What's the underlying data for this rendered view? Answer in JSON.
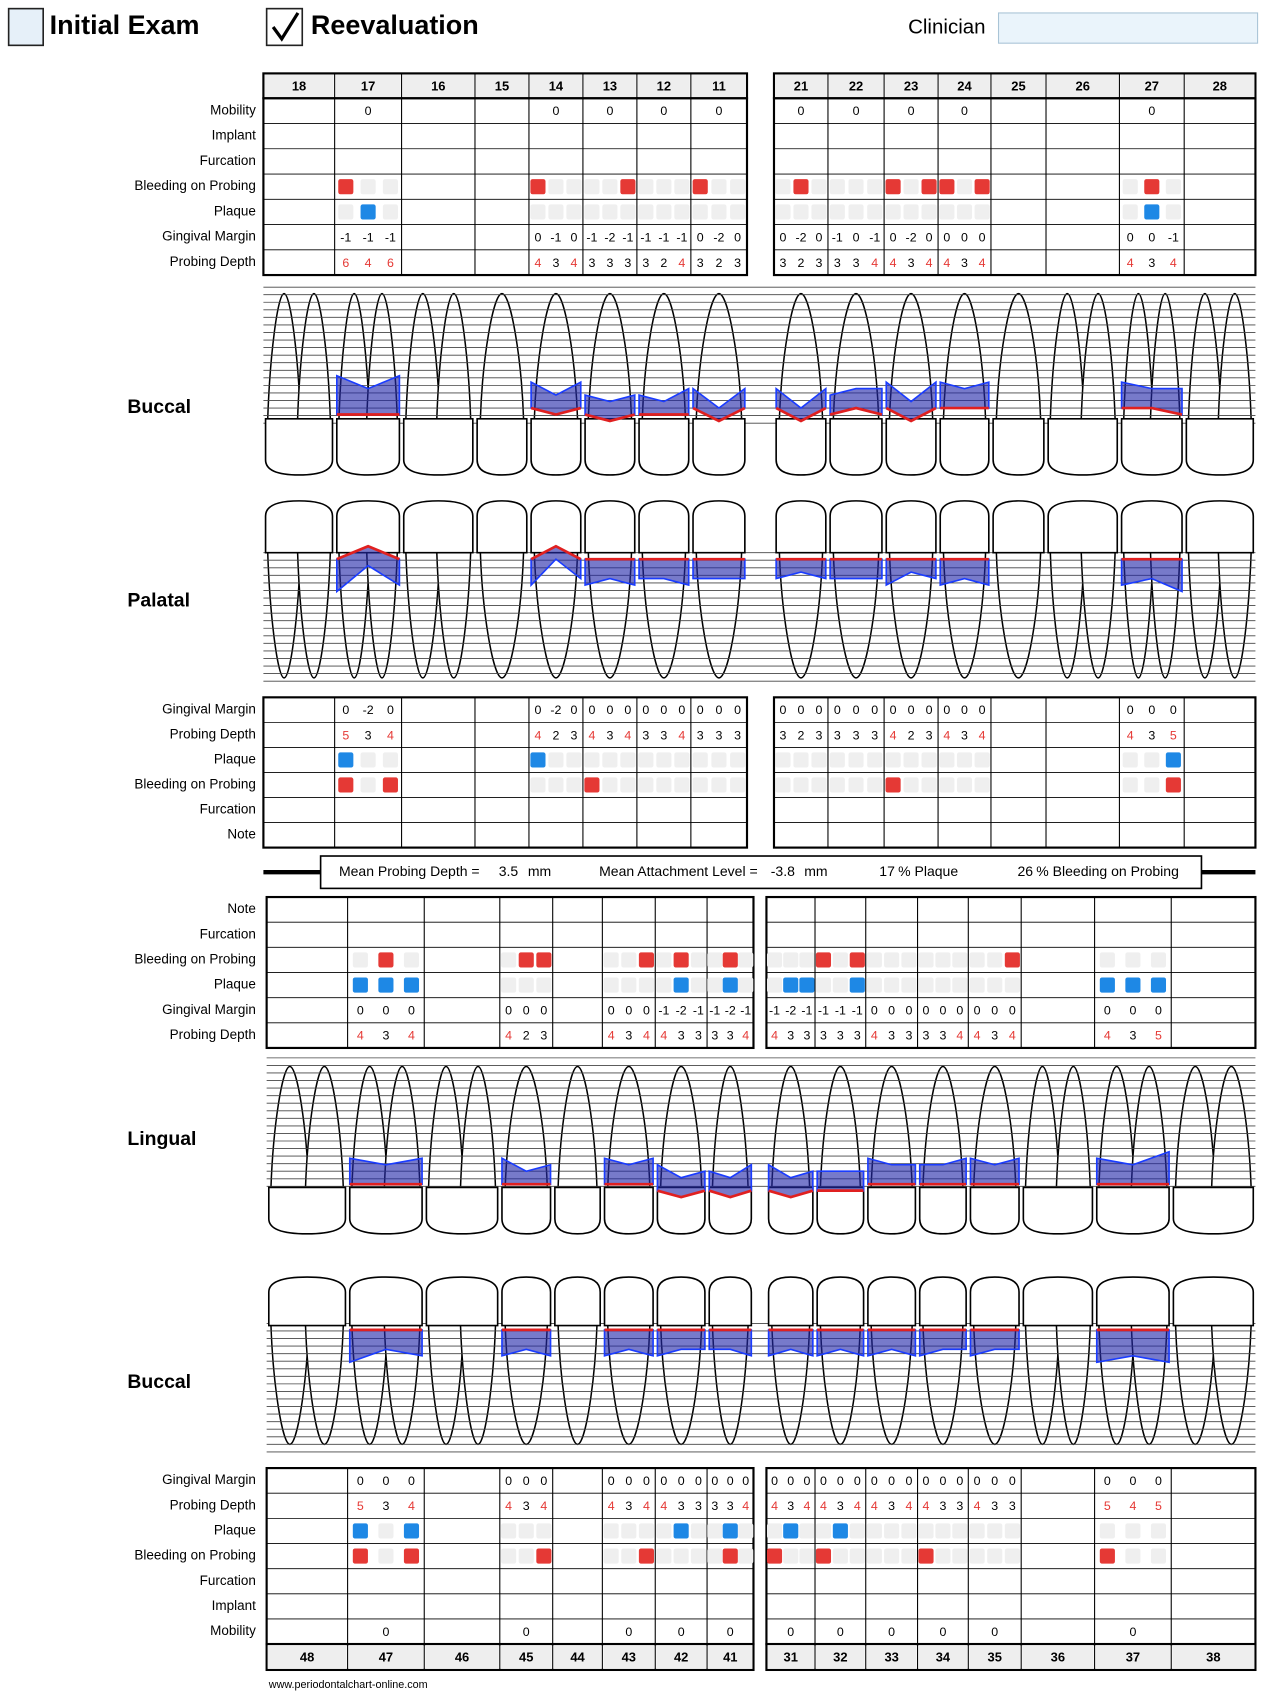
{
  "header": {
    "initial_exam": "Initial Exam",
    "reevaluation": "Reevaluation",
    "clinician": "Clinician"
  },
  "upper": {
    "teeth": [
      18,
      17,
      16,
      15,
      14,
      13,
      12,
      11,
      21,
      22,
      23,
      24,
      25,
      26,
      27,
      28
    ],
    "views": [
      "Buccal",
      "Palatal"
    ],
    "buccal_table": {
      "mobility": {
        "label": "Mobility",
        "values": [
          null,
          0,
          null,
          null,
          0,
          0,
          0,
          0,
          0,
          0,
          0,
          0,
          null,
          null,
          0,
          null
        ]
      },
      "implant": {
        "label": "Implant"
      },
      "furcation": {
        "label": "Furcation"
      },
      "bleeding_on_probing": {
        "label": "Bleeding on Probing",
        "color": "#e53935",
        "values": [
          null,
          [
            1,
            0,
            0
          ],
          null,
          null,
          [
            1,
            0,
            0
          ],
          [
            0,
            0,
            1
          ],
          [
            0,
            0,
            0
          ],
          [
            1,
            0,
            0
          ],
          [
            0,
            1,
            0
          ],
          [
            0,
            0,
            0
          ],
          [
            1,
            0,
            1
          ],
          [
            1,
            0,
            1
          ],
          null,
          null,
          [
            0,
            1,
            0
          ],
          null
        ]
      },
      "plaque": {
        "label": "Plaque",
        "color": "#1e88e5",
        "values": [
          null,
          [
            0,
            1,
            0
          ],
          null,
          null,
          [
            0,
            0,
            0
          ],
          [
            0,
            0,
            0
          ],
          [
            0,
            0,
            0
          ],
          [
            0,
            0,
            0
          ],
          [
            0,
            0,
            0
          ],
          [
            0,
            0,
            0
          ],
          [
            0,
            0,
            0
          ],
          [
            0,
            0,
            0
          ],
          null,
          null,
          [
            0,
            1,
            0
          ],
          null
        ]
      },
      "gingival_margin": {
        "label": "Gingival Margin",
        "values": [
          null,
          [
            -1,
            -1,
            -1
          ],
          null,
          null,
          [
            0,
            -1,
            0
          ],
          [
            -1,
            -2,
            -1
          ],
          [
            -1,
            -1,
            -1
          ],
          [
            0,
            -2,
            0
          ],
          [
            0,
            -2,
            0
          ],
          [
            -1,
            0,
            -1
          ],
          [
            0,
            -2,
            0
          ],
          [
            0,
            0,
            0
          ],
          null,
          null,
          [
            0,
            0,
            -1
          ],
          null
        ]
      },
      "probing_depth": {
        "label": "Probing Depth",
        "alert_at": 4,
        "alert_color": "#e53935",
        "values": [
          null,
          [
            6,
            4,
            6
          ],
          null,
          null,
          [
            4,
            3,
            4
          ],
          [
            3,
            3,
            3
          ],
          [
            3,
            2,
            4
          ],
          [
            3,
            2,
            3
          ],
          [
            3,
            2,
            3
          ],
          [
            3,
            3,
            4
          ],
          [
            4,
            3,
            4
          ],
          [
            4,
            3,
            4
          ],
          null,
          null,
          [
            4,
            3,
            4
          ],
          null
        ]
      }
    },
    "palatal_table": {
      "gingival_margin": {
        "label": "Gingival Margin",
        "values": [
          null,
          [
            0,
            -2,
            0
          ],
          null,
          null,
          [
            0,
            -2,
            0
          ],
          [
            0,
            0,
            0
          ],
          [
            0,
            0,
            0
          ],
          [
            0,
            0,
            0
          ],
          [
            0,
            0,
            0
          ],
          [
            0,
            0,
            0
          ],
          [
            0,
            0,
            0
          ],
          [
            0,
            0,
            0
          ],
          null,
          null,
          [
            0,
            0,
            0
          ],
          null
        ]
      },
      "probing_depth": {
        "label": "Probing Depth",
        "alert_at": 4,
        "alert_color": "#e53935",
        "values": [
          null,
          [
            5,
            3,
            4
          ],
          null,
          null,
          [
            4,
            2,
            3
          ],
          [
            4,
            3,
            4
          ],
          [
            3,
            3,
            4
          ],
          [
            3,
            3,
            3
          ],
          [
            3,
            2,
            3
          ],
          [
            3,
            3,
            3
          ],
          [
            4,
            2,
            3
          ],
          [
            4,
            3,
            4
          ],
          null,
          null,
          [
            4,
            3,
            5
          ],
          null
        ]
      },
      "plaque": {
        "label": "Plaque",
        "color": "#1e88e5",
        "values": [
          null,
          [
            1,
            0,
            0
          ],
          null,
          null,
          [
            1,
            0,
            0
          ],
          [
            0,
            0,
            0
          ],
          [
            0,
            0,
            0
          ],
          [
            0,
            0,
            0
          ],
          [
            0,
            0,
            0
          ],
          [
            0,
            0,
            0
          ],
          [
            0,
            0,
            0
          ],
          [
            0,
            0,
            0
          ],
          null,
          null,
          [
            0,
            0,
            1
          ],
          null
        ]
      },
      "bleeding_on_probing": {
        "label": "Bleeding on Probing",
        "color": "#e53935",
        "values": [
          null,
          [
            1,
            0,
            1
          ],
          null,
          null,
          [
            0,
            0,
            0
          ],
          [
            1,
            0,
            0
          ],
          [
            0,
            0,
            0
          ],
          [
            0,
            0,
            0
          ],
          [
            0,
            0,
            0
          ],
          [
            0,
            0,
            0
          ],
          [
            1,
            0,
            0
          ],
          [
            0,
            0,
            0
          ],
          null,
          null,
          [
            0,
            0,
            1
          ],
          null
        ]
      },
      "furcation": {
        "label": "Furcation"
      },
      "note": {
        "label": "Note"
      }
    }
  },
  "summary": {
    "mean_probing_depth_label": "Mean Probing Depth =",
    "mean_probing_depth": 3.5,
    "unit": "mm",
    "mean_attachment_level_label": "Mean Attachment Level =",
    "mean_attachment_level": -3.8,
    "plaque": 17,
    "plaque_label": "% Plaque",
    "bleeding": 26,
    "bleeding_label": "% Bleeding on Probing"
  },
  "lower": {
    "teeth": [
      48,
      47,
      46,
      45,
      44,
      43,
      42,
      41,
      31,
      32,
      33,
      34,
      35,
      36,
      37,
      38
    ],
    "views": [
      "Lingual",
      "Buccal"
    ],
    "lingual_table": {
      "note": {
        "label": "Note"
      },
      "furcation": {
        "label": "Furcation"
      },
      "bleeding_on_probing": {
        "label": "Bleeding on Probing",
        "color": "#e53935",
        "values": [
          null,
          [
            0,
            1,
            0
          ],
          null,
          [
            0,
            1,
            1
          ],
          null,
          [
            0,
            0,
            1
          ],
          [
            0,
            1,
            0
          ],
          [
            0,
            1,
            0
          ],
          [
            0,
            0,
            0
          ],
          [
            1,
            0,
            1
          ],
          [
            0,
            0,
            0
          ],
          [
            0,
            0,
            0
          ],
          [
            0,
            0,
            1
          ],
          null,
          [
            0,
            0,
            0
          ],
          null
        ]
      },
      "plaque": {
        "label": "Plaque",
        "color": "#1e88e5",
        "values": [
          null,
          [
            1,
            1,
            1
          ],
          null,
          [
            0,
            0,
            0
          ],
          null,
          [
            0,
            0,
            0
          ],
          [
            0,
            1,
            0
          ],
          [
            0,
            1,
            0
          ],
          [
            0,
            1,
            1
          ],
          [
            0,
            0,
            1
          ],
          [
            0,
            0,
            0
          ],
          [
            0,
            0,
            0
          ],
          [
            0,
            0,
            0
          ],
          null,
          [
            1,
            1,
            1
          ],
          null
        ]
      },
      "gingival_margin": {
        "label": "Gingival Margin",
        "values": [
          null,
          [
            0,
            0,
            0
          ],
          null,
          [
            0,
            0,
            0
          ],
          null,
          [
            0,
            0,
            0
          ],
          [
            -1,
            -2,
            -1
          ],
          [
            -1,
            -2,
            -1
          ],
          [
            -1,
            -2,
            -1
          ],
          [
            -1,
            -1,
            -1
          ],
          [
            0,
            0,
            0
          ],
          [
            0,
            0,
            0
          ],
          [
            0,
            0,
            0
          ],
          null,
          [
            0,
            0,
            0
          ],
          null
        ]
      },
      "probing_depth": {
        "label": "Probing Depth",
        "alert_at": 4,
        "alert_color": "#e53935",
        "values": [
          null,
          [
            4,
            3,
            4
          ],
          null,
          [
            4,
            2,
            3
          ],
          null,
          [
            4,
            3,
            4
          ],
          [
            4,
            3,
            3
          ],
          [
            3,
            3,
            4
          ],
          [
            4,
            3,
            3
          ],
          [
            3,
            3,
            3
          ],
          [
            4,
            3,
            3
          ],
          [
            3,
            3,
            4
          ],
          [
            4,
            3,
            4
          ],
          null,
          [
            4,
            3,
            5
          ],
          null
        ]
      }
    },
    "buccal_table": {
      "gingival_margin": {
        "label": "Gingival Margin",
        "values": [
          null,
          [
            0,
            0,
            0
          ],
          null,
          [
            0,
            0,
            0
          ],
          null,
          [
            0,
            0,
            0
          ],
          [
            0,
            0,
            0
          ],
          [
            0,
            0,
            0
          ],
          [
            0,
            0,
            0
          ],
          [
            0,
            0,
            0
          ],
          [
            0,
            0,
            0
          ],
          [
            0,
            0,
            0
          ],
          [
            0,
            0,
            0
          ],
          null,
          [
            0,
            0,
            0
          ],
          null
        ]
      },
      "probing_depth": {
        "label": "Probing Depth",
        "alert_at": 4,
        "alert_color": "#e53935",
        "values": [
          null,
          [
            5,
            3,
            4
          ],
          null,
          [
            4,
            3,
            4
          ],
          null,
          [
            4,
            3,
            4
          ],
          [
            4,
            3,
            3
          ],
          [
            3,
            3,
            4
          ],
          [
            4,
            3,
            4
          ],
          [
            4,
            3,
            4
          ],
          [
            4,
            3,
            4
          ],
          [
            4,
            3,
            3
          ],
          [
            4,
            3,
            3
          ],
          null,
          [
            5,
            4,
            5
          ],
          null
        ]
      },
      "plaque": {
        "label": "Plaque",
        "color": "#1e88e5",
        "values": [
          null,
          [
            1,
            0,
            1
          ],
          null,
          [
            0,
            0,
            0
          ],
          null,
          [
            0,
            0,
            0
          ],
          [
            0,
            1,
            0
          ],
          [
            0,
            1,
            0
          ],
          [
            0,
            1,
            0
          ],
          [
            0,
            1,
            0
          ],
          [
            0,
            0,
            0
          ],
          [
            0,
            0,
            0
          ],
          [
            0,
            0,
            0
          ],
          null,
          [
            0,
            0,
            0
          ],
          null
        ]
      },
      "bleeding_on_probing": {
        "label": "Bleeding on Probing",
        "color": "#e53935",
        "values": [
          null,
          [
            1,
            0,
            1
          ],
          null,
          [
            0,
            0,
            1
          ],
          null,
          [
            0,
            0,
            1
          ],
          [
            0,
            0,
            0
          ],
          [
            0,
            1,
            0
          ],
          [
            1,
            0,
            0
          ],
          [
            1,
            0,
            0
          ],
          [
            0,
            0,
            0
          ],
          [
            1,
            0,
            0
          ],
          [
            0,
            0,
            0
          ],
          null,
          [
            1,
            0,
            0
          ],
          null
        ]
      },
      "furcation": {
        "label": "Furcation"
      },
      "implant": {
        "label": "Implant"
      },
      "mobility": {
        "label": "Mobility",
        "values": [
          null,
          0,
          null,
          0,
          null,
          0,
          0,
          0,
          0,
          0,
          0,
          0,
          0,
          null,
          0,
          null
        ]
      }
    }
  },
  "footer": "www.periodontalchart-online.com"
}
